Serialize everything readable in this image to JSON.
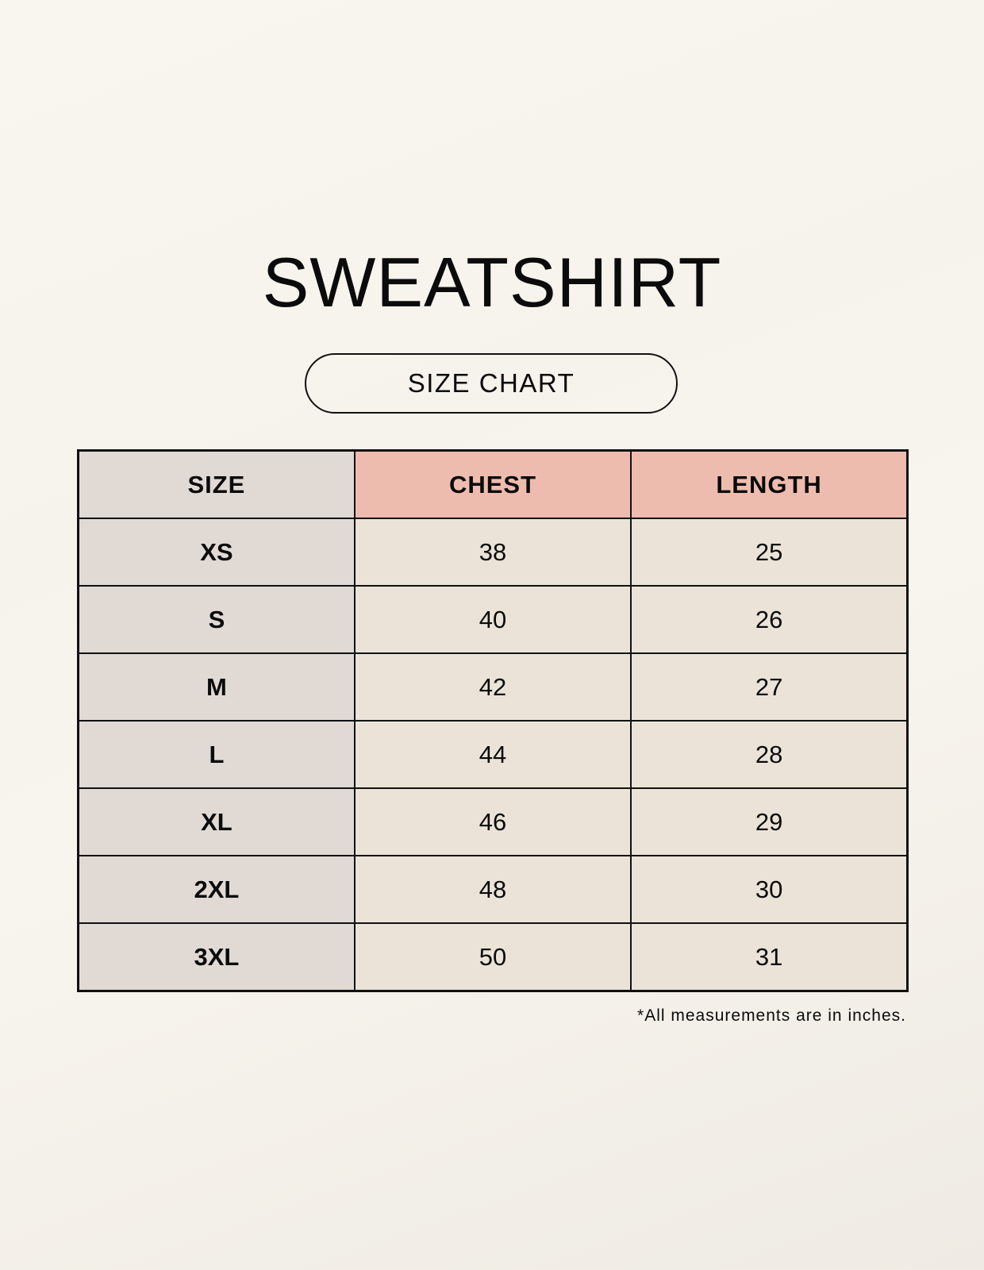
{
  "title": "SWEATSHIRT",
  "subtitle": "SIZE CHART",
  "table": {
    "headers": [
      "SIZE",
      "CHEST",
      "LENGTH"
    ],
    "rows": [
      [
        "XS",
        "38",
        "25"
      ],
      [
        "S",
        "40",
        "26"
      ],
      [
        "M",
        "42",
        "27"
      ],
      [
        "L",
        "44",
        "28"
      ],
      [
        "XL",
        "46",
        "29"
      ],
      [
        "2XL",
        "48",
        "30"
      ],
      [
        "3XL",
        "50",
        "31"
      ]
    ]
  },
  "footnote": "*All measurements are in inches.",
  "colors": {
    "size_column": "#e0d9d4",
    "header_accent": "#eebcae",
    "cell": "#ebe3d8"
  }
}
